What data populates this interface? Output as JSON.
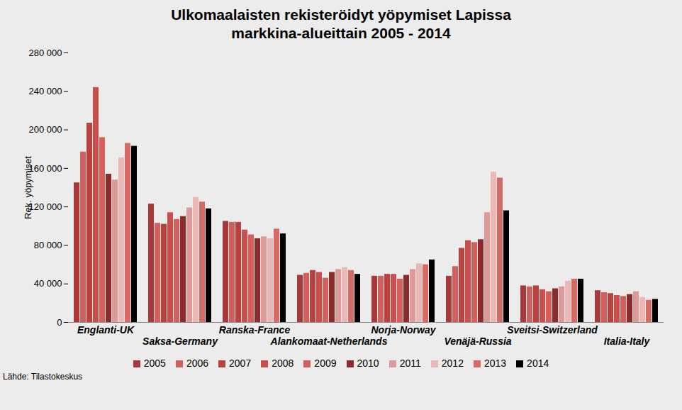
{
  "chart_data": {
    "type": "bar",
    "title": "Ulkomaalaisten rekisteröidyt yöpymiset Lapissa\nmarkkina-alueittain 2005 - 2014",
    "y_label": "Rek. yöpymiset",
    "source": "Lähde: Tilastokeskus",
    "categories": [
      "Englanti-UK",
      "Saksa-Germany",
      "Ranska-France",
      "Alankomaat-Netherlands",
      "Norja-Norway",
      "Venäjä-Russia",
      "Sveitsi-Switzerland",
      "Italia-Italy"
    ],
    "series": [
      {
        "name": "2005",
        "color": "#a8393a",
        "values": [
          145000,
          123000,
          105000,
          49000,
          48000,
          48000,
          38000,
          33000
        ]
      },
      {
        "name": "2006",
        "color": "#d0605e",
        "values": [
          177000,
          103000,
          104000,
          51000,
          48000,
          58000,
          37000,
          31000
        ]
      },
      {
        "name": "2007",
        "color": "#b9423f",
        "values": [
          207000,
          102000,
          104000,
          54000,
          50000,
          77000,
          38000,
          30000
        ]
      },
      {
        "name": "2008",
        "color": "#c94f4c",
        "values": [
          244000,
          114000,
          96000,
          52000,
          50000,
          85000,
          34000,
          28000
        ]
      },
      {
        "name": "2009",
        "color": "#d45f5b",
        "values": [
          192000,
          107000,
          91000,
          46000,
          45000,
          83000,
          32000,
          27000
        ]
      },
      {
        "name": "2010",
        "color": "#8c2b2b",
        "values": [
          154000,
          110000,
          87000,
          52000,
          49000,
          86000,
          35000,
          29000
        ]
      },
      {
        "name": "2011",
        "color": "#dd9a98",
        "values": [
          148000,
          119000,
          89000,
          55000,
          55000,
          114000,
          37000,
          32000
        ]
      },
      {
        "name": "2012",
        "color": "#ebb8b6",
        "values": [
          171000,
          130000,
          87000,
          57000,
          61000,
          156000,
          43000,
          26000
        ]
      },
      {
        "name": "2013",
        "color": "#d66b66",
        "values": [
          186000,
          125000,
          97000,
          54000,
          60000,
          150000,
          45000,
          23000
        ]
      },
      {
        "name": "2014",
        "color": "#000000",
        "values": [
          183000,
          118000,
          92000,
          50000,
          65000,
          116000,
          45000,
          24000
        ]
      }
    ],
    "ylim": [
      0,
      280000
    ],
    "yticks": [
      0,
      {
        "value": 40000,
        "label": "40 000"
      },
      {
        "value": 80000,
        "label": "80 000"
      },
      {
        "value": 120000,
        "label": "120 000"
      },
      {
        "value": 160000,
        "label": "160 000"
      },
      {
        "value": 200000,
        "label": "200 000"
      },
      {
        "value": 240000,
        "label": "240 000"
      },
      {
        "value": 280000,
        "label": "280 000"
      }
    ],
    "grid": false,
    "legend": "bottom"
  }
}
